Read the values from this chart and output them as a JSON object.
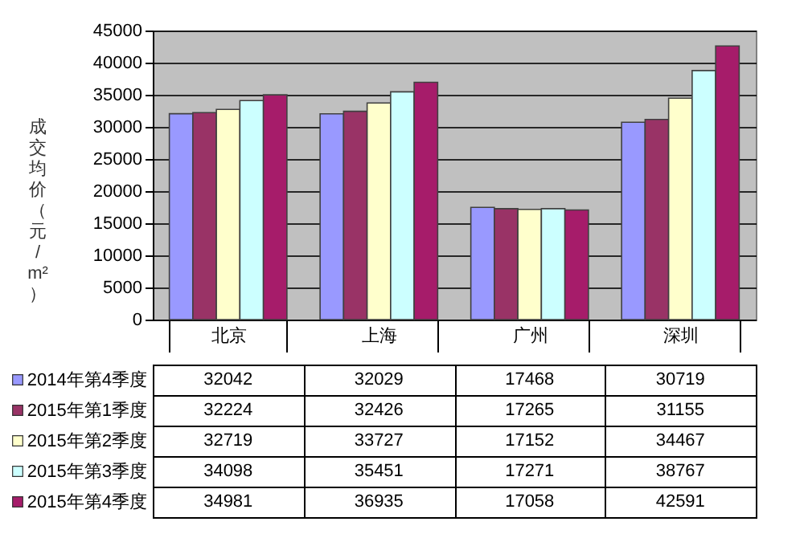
{
  "chart_data": {
    "type": "bar",
    "ylabel": "成交均价（元/m²）",
    "categories": [
      "北京",
      "上海",
      "广州",
      "深圳"
    ],
    "series": [
      {
        "name": "2014年第4季度",
        "color": "#9999ff",
        "values": [
          32042,
          32029,
          17468,
          30719
        ]
      },
      {
        "name": "2015年第1季度",
        "color": "#993366",
        "values": [
          32224,
          32426,
          17265,
          31155
        ]
      },
      {
        "name": "2015年第2季度",
        "color": "#ffffcc",
        "values": [
          32719,
          33727,
          17152,
          34467
        ]
      },
      {
        "name": "2015年第3季度",
        "color": "#ccffff",
        "values": [
          34098,
          35451,
          17271,
          38767
        ]
      },
      {
        "name": "2015年第4季度",
        "color": "#a61c6a",
        "values": [
          34981,
          36935,
          17058,
          42591
        ]
      }
    ],
    "ylim": [
      0,
      45000
    ],
    "yticks": [
      0,
      5000,
      10000,
      15000,
      20000,
      25000,
      30000,
      35000,
      40000,
      45000
    ],
    "grid": "y",
    "legend": "bottom",
    "data_labels": true
  }
}
